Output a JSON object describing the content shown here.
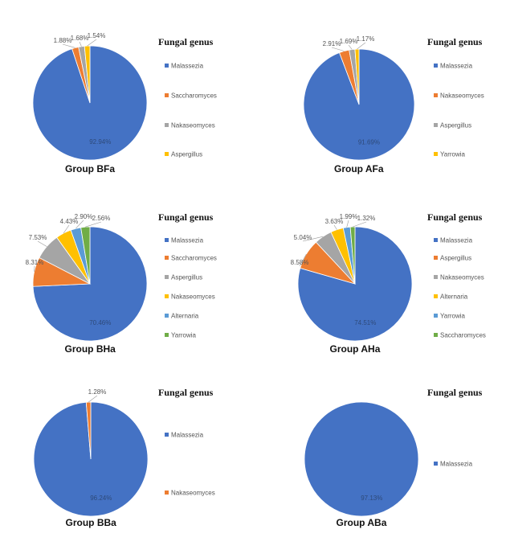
{
  "colors": {
    "blue": "#4472C4",
    "orange": "#ED7D31",
    "gray": "#A5A5A5",
    "yellow": "#FFC000",
    "lightblue": "#5B9BD5",
    "green": "#70AD47"
  },
  "chart_data": [
    {
      "type": "pie",
      "title": "Group BFa",
      "legend_title": "Fungal genus",
      "legend_position": "right",
      "slices": [
        {
          "label": "Malassezia",
          "value": 92.94,
          "value_label": "92.94%",
          "color": "#4472C4"
        },
        {
          "label": "Saccharomyces",
          "value": 1.88,
          "value_label": "1.88%",
          "color": "#ED7D31"
        },
        {
          "label": "Nakaseomyces",
          "value": 1.68,
          "value_label": "1.68%",
          "color": "#A5A5A5"
        },
        {
          "label": "Aspergillus",
          "value": 1.54,
          "value_label": "1.54%",
          "color": "#FFC000"
        }
      ]
    },
    {
      "type": "pie",
      "title": "Group AFa",
      "legend_title": "Fungal genus",
      "legend_position": "right",
      "slices": [
        {
          "label": "Malassezia",
          "value": 91.69,
          "value_label": "91.69%",
          "color": "#4472C4"
        },
        {
          "label": "Nakaseomyces",
          "value": 2.91,
          "value_label": "2.91%",
          "color": "#ED7D31"
        },
        {
          "label": "Aspergillus",
          "value": 1.69,
          "value_label": "1.69%",
          "color": "#A5A5A5"
        },
        {
          "label": "Yarrowia",
          "value": 1.17,
          "value_label": "1.17%",
          "color": "#FFC000"
        }
      ]
    },
    {
      "type": "pie",
      "title": "Group BHa",
      "legend_title": "Fungal genus",
      "legend_position": "right",
      "slices": [
        {
          "label": "Malassezia",
          "value": 70.46,
          "value_label": "70.46%",
          "color": "#4472C4"
        },
        {
          "label": "Saccharomyces",
          "value": 8.31,
          "value_label": "8.31%",
          "color": "#ED7D31"
        },
        {
          "label": "Aspergillus",
          "value": 7.53,
          "value_label": "7.53%",
          "color": "#A5A5A5"
        },
        {
          "label": "Nakaseomyces",
          "value": 4.43,
          "value_label": "4.43%",
          "color": "#FFC000"
        },
        {
          "label": "Alternaria",
          "value": 2.9,
          "value_label": "2.90%",
          "color": "#5B9BD5"
        },
        {
          "label": "Yarrowia",
          "value": 2.56,
          "value_label": "2.56%",
          "color": "#70AD47"
        }
      ]
    },
    {
      "type": "pie",
      "title": "Group AHa",
      "legend_title": "Fungal genus",
      "legend_position": "right",
      "slices": [
        {
          "label": "Malassezia",
          "value": 74.51,
          "value_label": "74.51%",
          "color": "#4472C4"
        },
        {
          "label": "Aspergillus",
          "value": 8.58,
          "value_label": "8.58%",
          "color": "#ED7D31"
        },
        {
          "label": "Nakaseomyces",
          "value": 5.04,
          "value_label": "5.04%",
          "color": "#A5A5A5"
        },
        {
          "label": "Alternaria",
          "value": 3.63,
          "value_label": "3.63%",
          "color": "#FFC000"
        },
        {
          "label": "Yarrowia",
          "value": 1.99,
          "value_label": "1.99%",
          "color": "#5B9BD5"
        },
        {
          "label": "Saccharomyces",
          "value": 1.32,
          "value_label": "1.32%",
          "color": "#70AD47"
        }
      ]
    },
    {
      "type": "pie",
      "title": "Group BBa",
      "legend_title": "Fungal genus",
      "legend_position": "right",
      "slices": [
        {
          "label": "Malassezia",
          "value": 96.24,
          "value_label": "96.24%",
          "color": "#4472C4"
        },
        {
          "label": "Nakaseomyces",
          "value": 1.28,
          "value_label": "1.28%",
          "color": "#ED7D31"
        }
      ]
    },
    {
      "type": "pie",
      "title": "Group ABa",
      "legend_title": "Fungal genus",
      "legend_position": "right",
      "slices": [
        {
          "label": "Malassezia",
          "value": 97.13,
          "value_label": "97.13%",
          "color": "#4472C4"
        }
      ]
    }
  ]
}
